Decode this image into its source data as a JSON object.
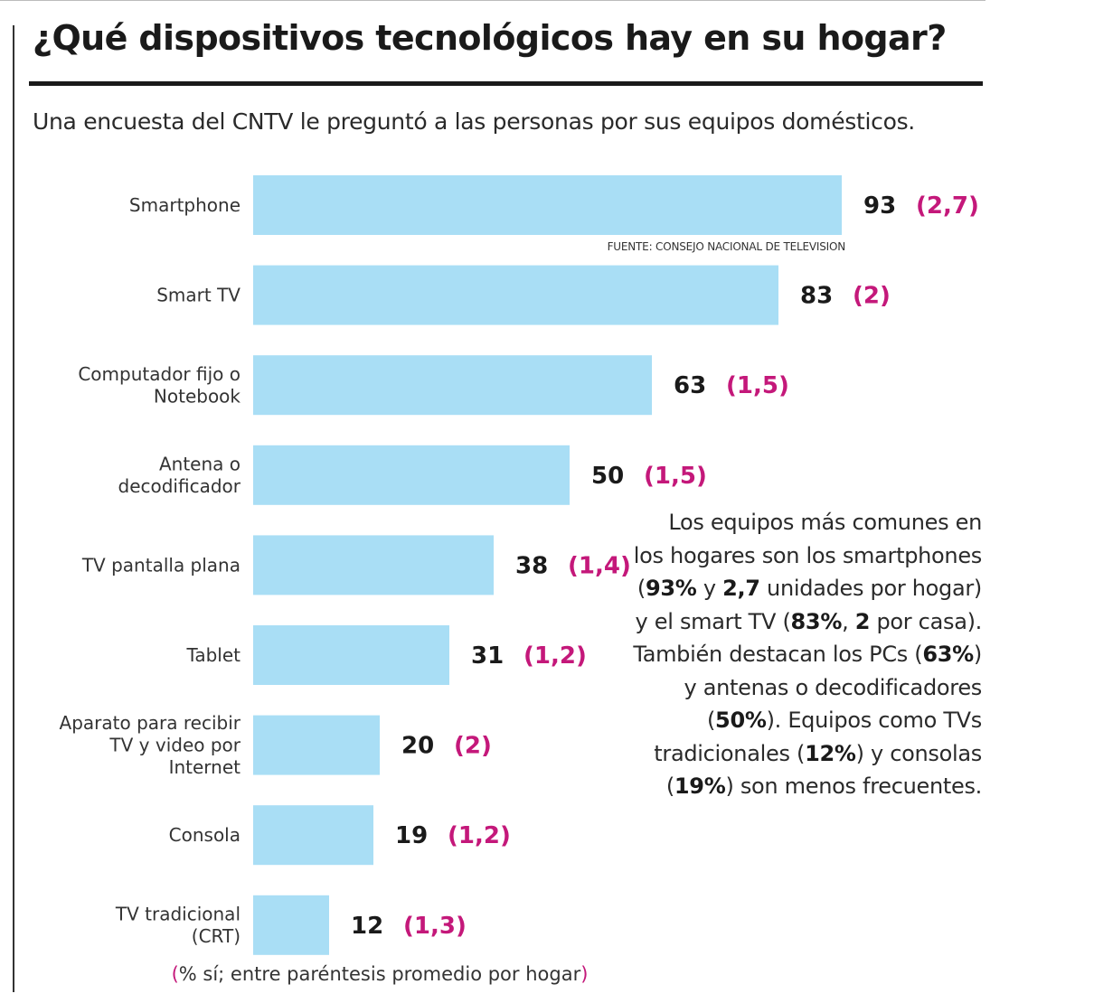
{
  "title": "¿Qué dispositivos tecnológicos hay en su hogar?",
  "subtitle": "Una encuesta del CNTV le preguntó a las personas por sus equipos domésticos.",
  "source": "FUENTE: CONSEJO NACIONAL DE TELEVISION",
  "note": {
    "open": "(",
    "text": "% sí; entre paréntesis promedio por hogar",
    "close": ")"
  },
  "commentary": {
    "t1": "Los equipos más comunes en los hogares son los smartphones (",
    "b1": "93%",
    "t2": " y ",
    "b2": "2,7",
    "t3": " unidades por hogar) y el smart TV (",
    "b3": "83%",
    "t4": ", ",
    "b4": "2",
    "t5": " por casa). También destacan los PCs (",
    "b5": "63%",
    "t6": ") y antenas o decodificadores (",
    "b6": "50%",
    "t7": "). Equipos como TVs tradicionales (",
    "b7": "12%",
    "t8": ") y consolas (",
    "b8": "19%",
    "t9": ") son menos frecuentes."
  },
  "colors": {
    "bar": "#a9def5",
    "average": "#c4187a",
    "text": "#1a1a1a"
  },
  "chart_data": {
    "type": "bar",
    "orientation": "horizontal",
    "categories": [
      [
        "Smartphone"
      ],
      [
        "Smart TV"
      ],
      [
        "Computador fijo o",
        "Notebook"
      ],
      [
        "Antena o",
        "decodificador"
      ],
      [
        "TV pantalla plana"
      ],
      [
        "Tablet"
      ],
      [
        "Aparato para recibir",
        "TV y video por",
        "Internet"
      ],
      [
        "Consola"
      ],
      [
        "TV tradicional",
        "(CRT)"
      ]
    ],
    "series": [
      {
        "values": [
          93,
          83,
          63,
          50,
          38,
          31,
          20,
          19,
          12
        ],
        "averages": [
          "(2,7)",
          "(2)",
          "(1,5)",
          "(1,5)",
          "(1,4)",
          "(1,2)",
          "(2)",
          "(1,2)",
          "(1,3)"
        ]
      }
    ],
    "xlim": [
      0,
      100
    ],
    "grid": false,
    "legend": "none"
  }
}
